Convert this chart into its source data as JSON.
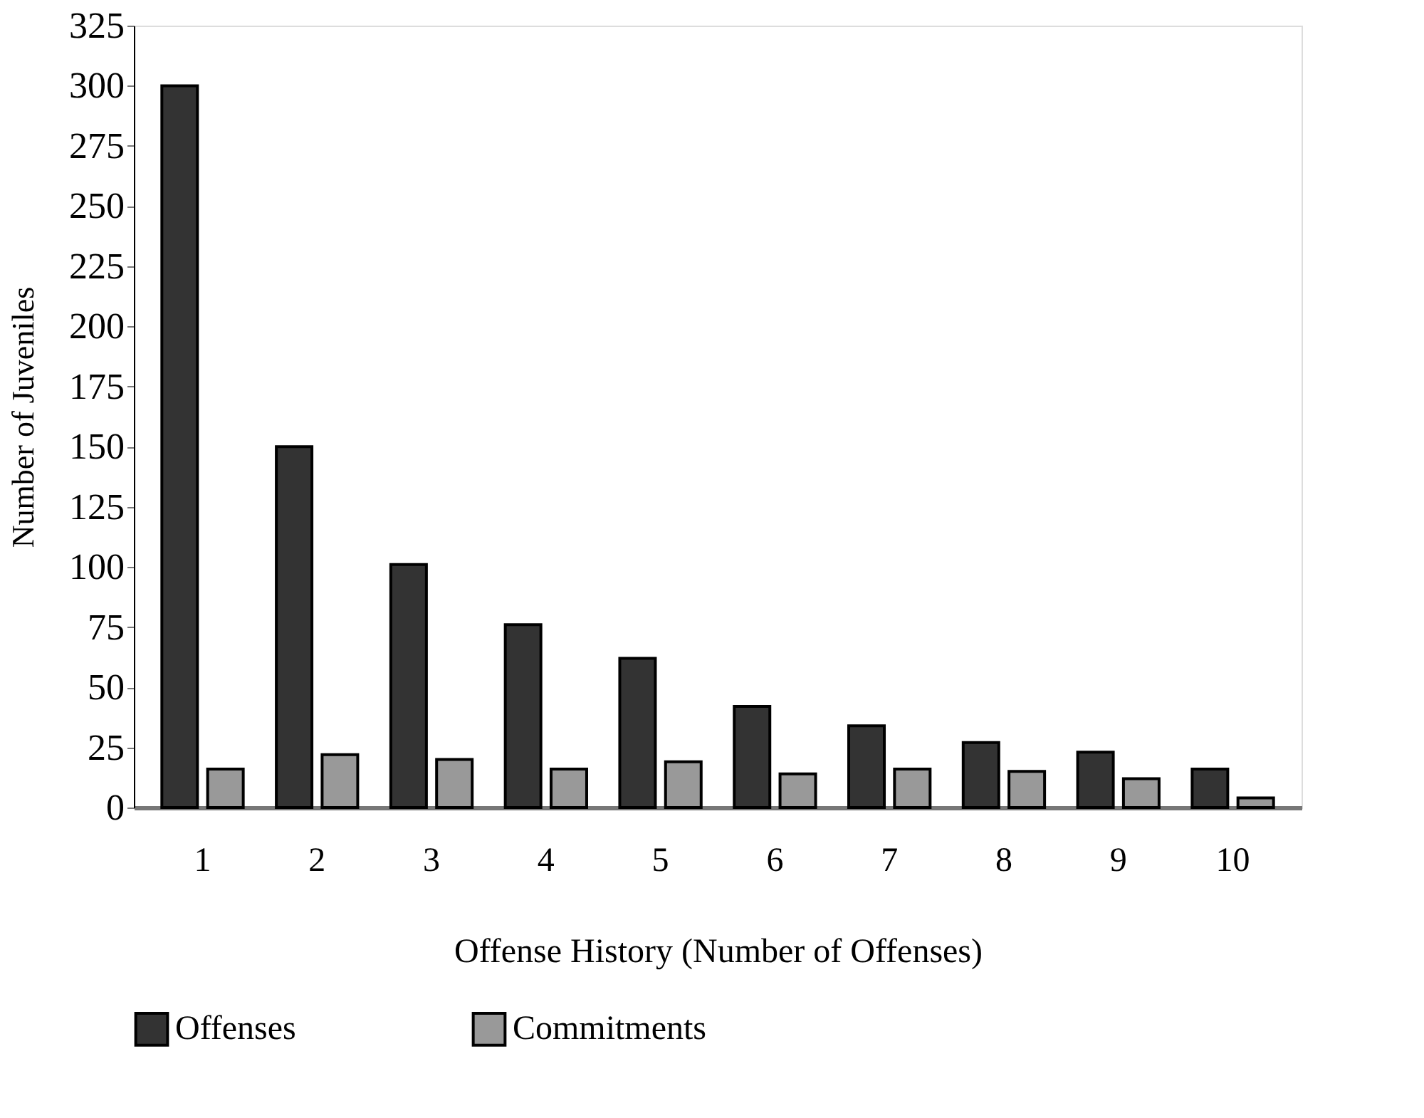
{
  "chart_data": {
    "type": "bar",
    "xlabel": "Offense History (Number of Offenses)",
    "ylabel": "Number of Juveniles",
    "categories": [
      "1",
      "2",
      "3",
      "4",
      "5",
      "6",
      "7",
      "8",
      "9",
      "10"
    ],
    "series": [
      {
        "name": "Offenses",
        "color": "#333333",
        "values": [
          300,
          150,
          101,
          76,
          62,
          42,
          34,
          27,
          23,
          16
        ]
      },
      {
        "name": "Commitments",
        "color": "#999999",
        "values": [
          16,
          22,
          20,
          16,
          19,
          14,
          16,
          15,
          12,
          4
        ]
      }
    ],
    "ylim": [
      0,
      325
    ],
    "yticks": [
      0,
      25,
      50,
      75,
      100,
      125,
      150,
      175,
      200,
      225,
      250,
      275,
      300,
      325
    ],
    "grid": false,
    "legend": "bottom"
  }
}
